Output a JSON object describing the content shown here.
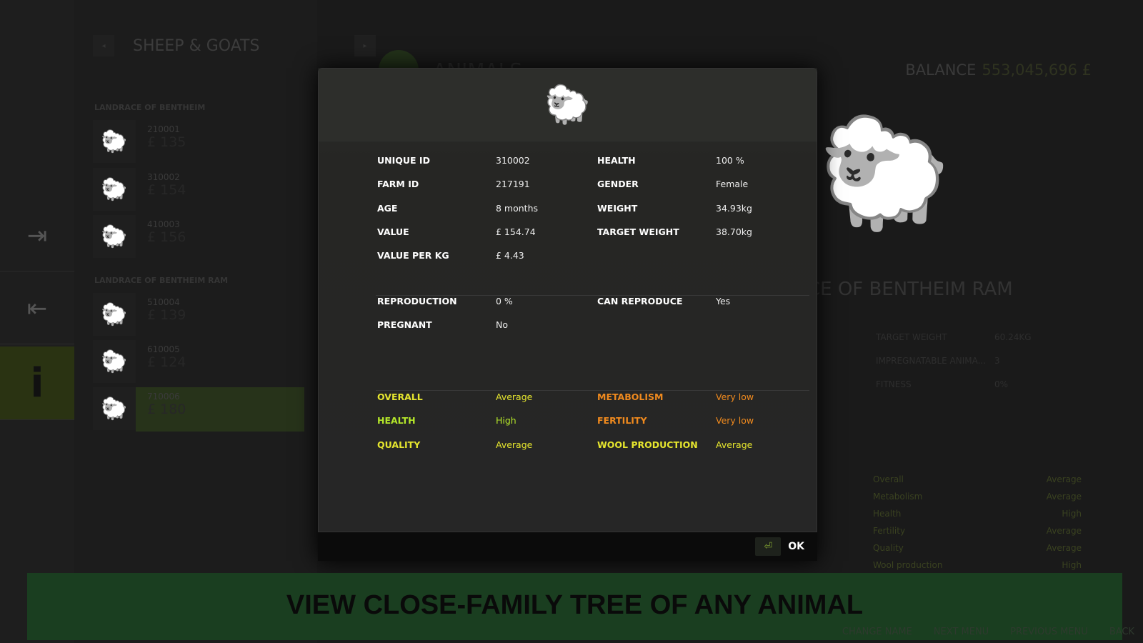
{
  "list": {
    "title": "SHEEP & GOATS",
    "groups": [
      {
        "name": "LANDRACE OF BENTHEIM",
        "animals": [
          {
            "id": "210001",
            "value": "£ 135"
          },
          {
            "id": "310002",
            "value": "£ 154"
          },
          {
            "id": "410003",
            "value": "£ 156"
          }
        ]
      },
      {
        "name": "LANDRACE OF BENTHEIM RAM",
        "animals": [
          {
            "id": "510004",
            "value": "£ 139"
          },
          {
            "id": "610005",
            "value": "£ 124"
          },
          {
            "id": "710006",
            "value": "£ 180"
          }
        ]
      }
    ]
  },
  "header": {
    "title": "ANIMALS",
    "balance_label": "BALANCE",
    "balance_value": "553,045,696 £"
  },
  "detail": {
    "breed": "CE OF BENTHEIM RAM",
    "stats": [
      {
        "label": "TARGET WEIGHT",
        "value": "60.24KG"
      },
      {
        "label": "IMPREGNATABLE ANIMA...",
        "value": "3"
      },
      {
        "label": "FITNESS",
        "value": "0%"
      }
    ],
    "traits": [
      {
        "label": "Overall",
        "value": "Average"
      },
      {
        "label": "Metabolism",
        "value": "Average"
      },
      {
        "label": "Health",
        "value": "High"
      },
      {
        "label": "Fertility",
        "value": "Average"
      },
      {
        "label": "Quality",
        "value": "Average"
      },
      {
        "label": "Wool production",
        "value": "High"
      }
    ]
  },
  "modal": {
    "info": [
      {
        "label": "UNIQUE ID",
        "value": "310002"
      },
      {
        "label": "HEALTH",
        "value": "100 %"
      },
      {
        "label": "FARM ID",
        "value": "217191"
      },
      {
        "label": "GENDER",
        "value": "Female"
      },
      {
        "label": "AGE",
        "value": "8 months"
      },
      {
        "label": "WEIGHT",
        "value": "34.93kg"
      },
      {
        "label": "VALUE",
        "value": "£ 154.74"
      },
      {
        "label": "TARGET WEIGHT",
        "value": "38.70kg"
      },
      {
        "label": "VALUE PER KG",
        "value": "£ 4.43"
      }
    ],
    "repro": [
      {
        "label": "REPRODUCTION",
        "value": "0 %"
      },
      {
        "label": "CAN REPRODUCE",
        "value": "Yes"
      },
      {
        "label": "PREGNANT",
        "value": "No"
      }
    ],
    "genetics": [
      {
        "label": "OVERALL",
        "value": "Average",
        "color": "#e6e62e"
      },
      {
        "label": "METABOLISM",
        "value": "Very low",
        "color": "#f08a1e"
      },
      {
        "label": "HEALTH",
        "value": "High",
        "color": "#b4e62a"
      },
      {
        "label": "FERTILITY",
        "value": "Very low",
        "color": "#f08a1e"
      },
      {
        "label": "QUALITY",
        "value": "Average",
        "color": "#e6e62e"
      },
      {
        "label": "WOOL PRODUCTION",
        "value": "Average",
        "color": "#e6e62e"
      }
    ],
    "ok_label": "OK"
  },
  "banner": "VIEW CLOSE-FAMILY TREE OF ANY ANIMAL",
  "hints": [
    "CHANGE NAME",
    "NEXT MENU",
    "PREVIOUS MENU",
    "BACK"
  ]
}
